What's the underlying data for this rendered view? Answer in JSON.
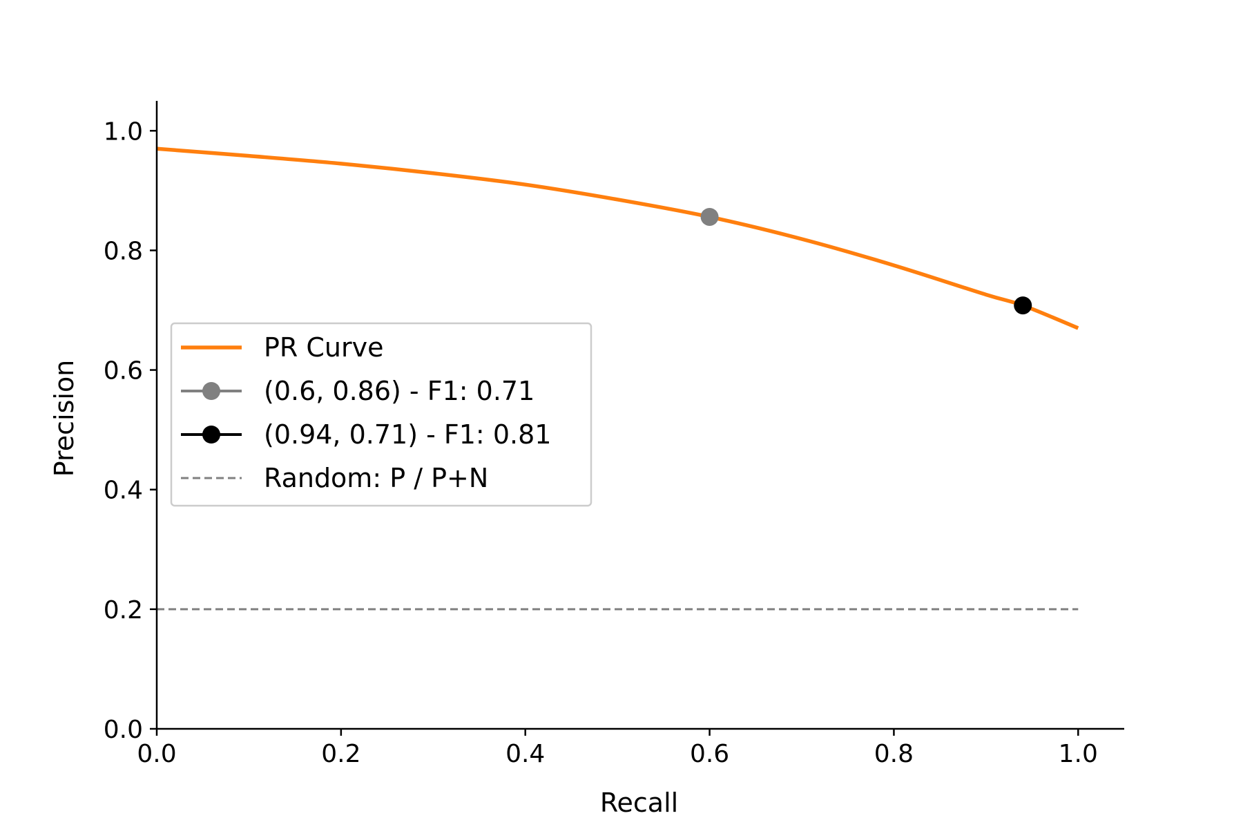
{
  "chart_data": {
    "type": "line",
    "xlabel": "Recall",
    "ylabel": "Precision",
    "xlim": [
      0.0,
      1.05
    ],
    "ylim": [
      0.0,
      1.05
    ],
    "xticks": [
      0.0,
      0.2,
      0.4,
      0.6,
      0.8,
      1.0
    ],
    "yticks": [
      0.0,
      0.2,
      0.4,
      0.6,
      0.8,
      1.0
    ],
    "xtick_labels": [
      "0.0",
      "0.2",
      "0.4",
      "0.6",
      "0.8",
      "1.0"
    ],
    "ytick_labels": [
      "0.0",
      "0.2",
      "0.4",
      "0.6",
      "0.8",
      "1.0"
    ],
    "grid": false,
    "legend_position": "center-left",
    "series": [
      {
        "name": "PR Curve",
        "kind": "line",
        "color": "#ff7f0e",
        "x": [
          0.0,
          0.1,
          0.2,
          0.3,
          0.4,
          0.5,
          0.6,
          0.7,
          0.8,
          0.9,
          0.94,
          1.0
        ],
        "y": [
          0.97,
          0.958,
          0.945,
          0.929,
          0.91,
          0.885,
          0.856,
          0.819,
          0.775,
          0.726,
          0.708,
          0.67
        ]
      },
      {
        "name": "(0.6, 0.86) - F1: 0.71",
        "kind": "point",
        "color": "#808080",
        "x": [
          0.6
        ],
        "y": [
          0.856
        ]
      },
      {
        "name": "(0.94, 0.71) - F1: 0.81",
        "kind": "point",
        "color": "#000000",
        "x": [
          0.94
        ],
        "y": [
          0.708
        ]
      },
      {
        "name": "Random: P / P+N",
        "kind": "dashed",
        "color": "#808080",
        "x": [
          0.0,
          1.0
        ],
        "y": [
          0.2,
          0.2
        ]
      }
    ]
  }
}
